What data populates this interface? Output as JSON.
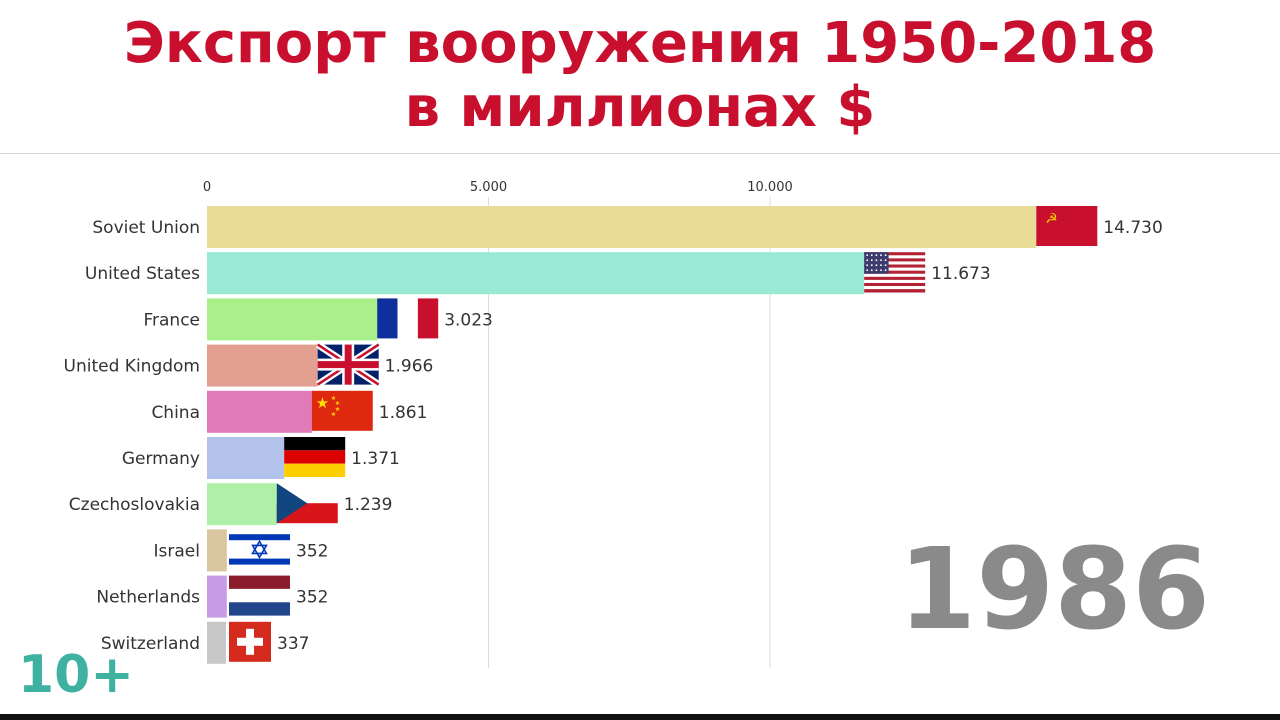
{
  "title_line1": "Экспорт вооружения 1950-2018",
  "title_line2": "в миллионах $",
  "year": "1986",
  "logo_text": "10+",
  "chart_data": {
    "type": "bar",
    "orientation": "horizontal",
    "axis_position": "top",
    "xlim": [
      0,
      15900
    ],
    "x_ticks": [
      0,
      5000,
      10000
    ],
    "x_tick_labels": [
      "0",
      "5.000",
      "10.000"
    ],
    "grid": true,
    "categories": [
      "Soviet Union",
      "United States",
      "France",
      "United Kingdom",
      "China",
      "Germany",
      "Czechoslovakia",
      "Israel",
      "Netherlands",
      "Switzerland"
    ],
    "values": [
      14730,
      11673,
      3023,
      1966,
      1861,
      1371,
      1239,
      352,
      352,
      337
    ],
    "value_labels": [
      "14.730",
      "11.673",
      "3.023",
      "1.966",
      "1.861",
      "1.371",
      "1.239",
      "352",
      "352",
      "337"
    ],
    "colors": [
      "#e8dc96",
      "#98ead4",
      "#a9f08a",
      "#e3a091",
      "#e07ab8",
      "#b3c2ea",
      "#aef0a8",
      "#d9c5a0",
      "#c79be6",
      "#c8c8c8"
    ],
    "flags": [
      "soviet-flag",
      "usa-flag",
      "france-flag",
      "uk-flag",
      "china-flag",
      "germany-flag",
      "czechoslovakia-flag",
      "israel-flag",
      "netherlands-flag",
      "switzerland-flag"
    ]
  }
}
